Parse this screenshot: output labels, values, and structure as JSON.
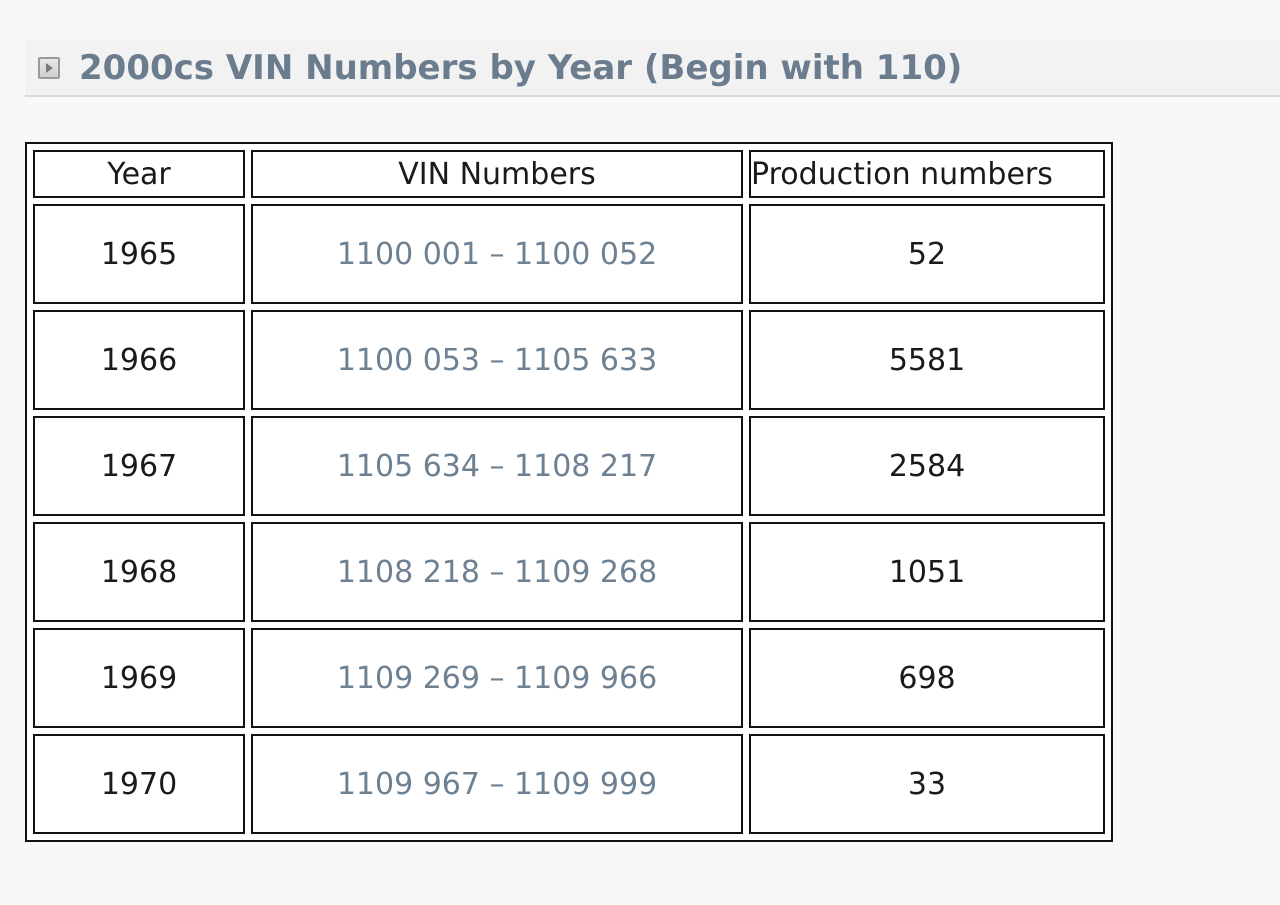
{
  "section": {
    "title": "2000cs VIN Numbers by Year (Begin with 110)",
    "toggle_icon": "expand-arrow-icon"
  },
  "table": {
    "headers": {
      "year": "Year",
      "vin": "VIN Numbers",
      "production": "Production numbers"
    },
    "rows": [
      {
        "year": "1965",
        "vin": "1100 001 – 1100 052",
        "production": "52"
      },
      {
        "year": "1966",
        "vin": "1100 053 – 1105 633",
        "production": "5581"
      },
      {
        "year": "1967",
        "vin": "1105 634 – 1108 217",
        "production": "2584"
      },
      {
        "year": "1968",
        "vin": "1108 218 – 1109 268",
        "production": "1051"
      },
      {
        "year": "1969",
        "vin": "1109 269 – 1109 966",
        "production": "698"
      },
      {
        "year": "1970",
        "vin": "1109 967 – 1109 999",
        "production": "33"
      }
    ]
  },
  "colors": {
    "title": "#6a7c8e",
    "vin_text": "#6e8193",
    "border": "#111111"
  }
}
